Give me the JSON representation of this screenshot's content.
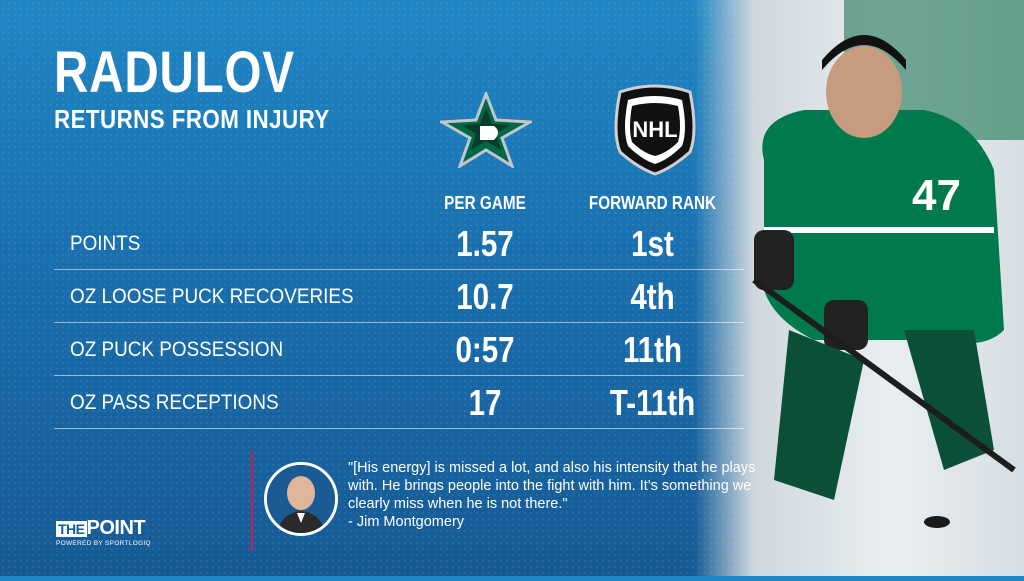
{
  "header": {
    "title": "RADULOV",
    "subtitle": "RETURNS FROM INJURY"
  },
  "logos": {
    "team": "dallas-stars-logo",
    "league": "nhl-logo",
    "league_text": "NHL",
    "team_color": "#006847"
  },
  "table": {
    "columns": [
      "PER GAME",
      "FORWARD RANK"
    ],
    "rows": [
      {
        "label": "POINTS",
        "per_game": "1.57",
        "rank": "1st"
      },
      {
        "label": "OZ LOOSE PUCK RECOVERIES",
        "per_game": "10.7",
        "rank": "4th"
      },
      {
        "label": "OZ PUCK POSSESSION",
        "per_game": "0:57",
        "rank": "11th"
      },
      {
        "label": "OZ PASS RECEPTIONS",
        "per_game": "17",
        "rank": "T-11th"
      }
    ]
  },
  "quote": {
    "text": "\"[His energy] is missed a lot, and also his intensity that he plays with. He brings people into the fight with him. It's something we clearly miss when he is not there.\"",
    "attribution": "- Jim Montgomery"
  },
  "player": {
    "jersey_number": "47",
    "jersey_color": "#007a4d"
  },
  "brand": {
    "the": "THE",
    "name": "POINT",
    "tagline": "POWERED BY SPORTLOGIQ"
  },
  "colors": {
    "background": "#1a6fae",
    "accent": "#c61f4b"
  }
}
